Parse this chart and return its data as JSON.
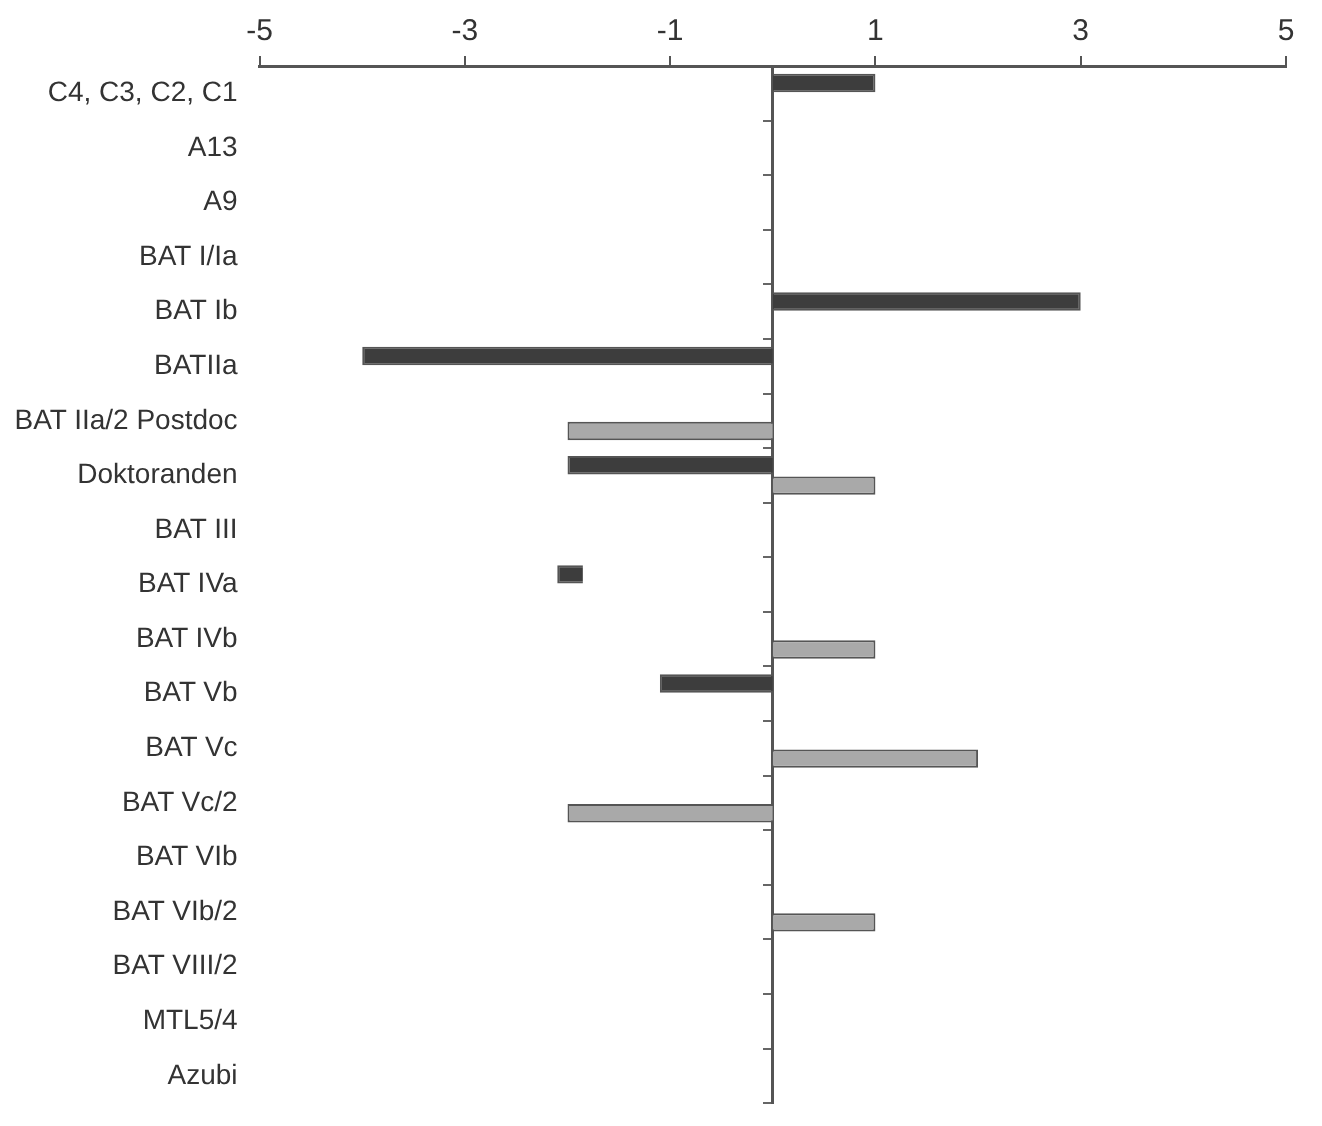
{
  "chart_data": {
    "type": "bar",
    "orientation": "horizontal",
    "categories": [
      "C4, C3, C2, C1",
      "A13",
      "A9",
      "BAT I/Ia",
      "BAT Ib",
      "BATIIa",
      "BAT IIa/2 Postdoc",
      "Doktoranden",
      "BAT III",
      "BAT IVa",
      "BAT IVb",
      "BAT Vb",
      "BAT Vc",
      "BAT Vc/2",
      "BAT VIb",
      "BAT VIb/2",
      "BAT VIII/2",
      "MTL5/4",
      "Azubi"
    ],
    "series": [
      {
        "color": "#3d3d3d",
        "values": [
          1,
          null,
          null,
          null,
          3,
          -4,
          null,
          -2,
          null,
          0.25,
          null,
          -1.1,
          null,
          null,
          null,
          null,
          null,
          null,
          null
        ],
        "base": [
          0,
          null,
          null,
          null,
          0,
          0,
          null,
          0,
          null,
          -2.1,
          null,
          0,
          null,
          null,
          null,
          null,
          null,
          null,
          null
        ]
      },
      {
        "color": "#a9a9a9",
        "values": [
          null,
          null,
          null,
          null,
          null,
          null,
          -2,
          1,
          null,
          null,
          1,
          null,
          2,
          -2,
          null,
          1,
          null,
          null,
          null
        ]
      }
    ],
    "xlim": [
      -5,
      5
    ],
    "xticks": [
      -5,
      -3,
      -1,
      1,
      3,
      5
    ],
    "grid": false,
    "legend": false
  }
}
